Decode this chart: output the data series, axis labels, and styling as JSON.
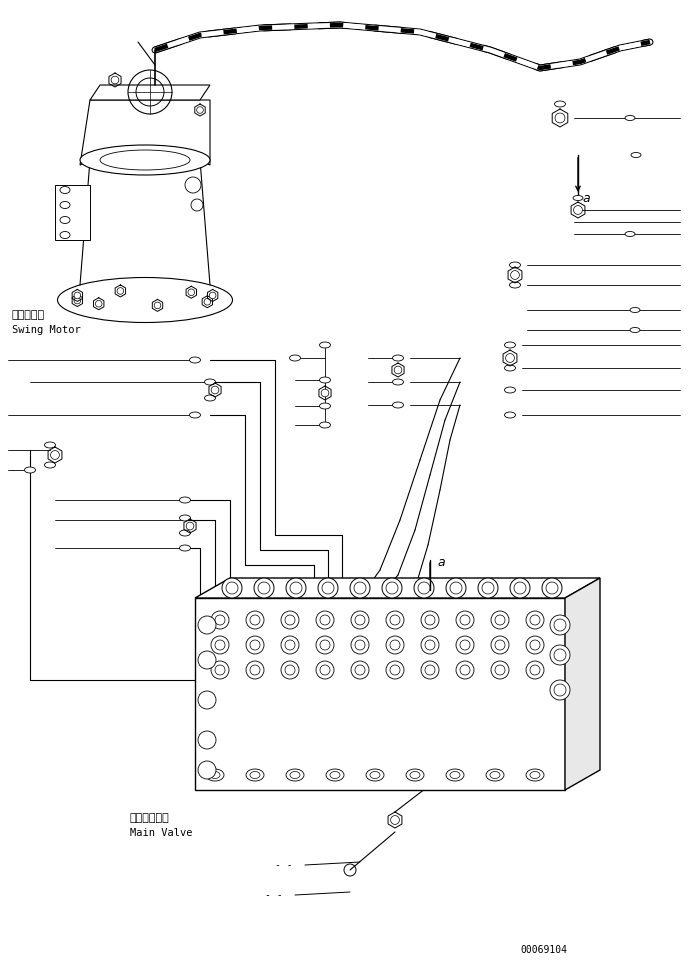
{
  "bg_color": "#ffffff",
  "line_color": "#000000",
  "fig_width": 6.98,
  "fig_height": 9.6,
  "dpi": 100,
  "part_number": "00069104",
  "label_swing_motor_ja": "旋回モータ",
  "label_swing_motor_en": "Swing Motor",
  "label_main_valve_ja": "メインバルブ",
  "label_main_valve_en": "Main Valve",
  "label_a": "a"
}
